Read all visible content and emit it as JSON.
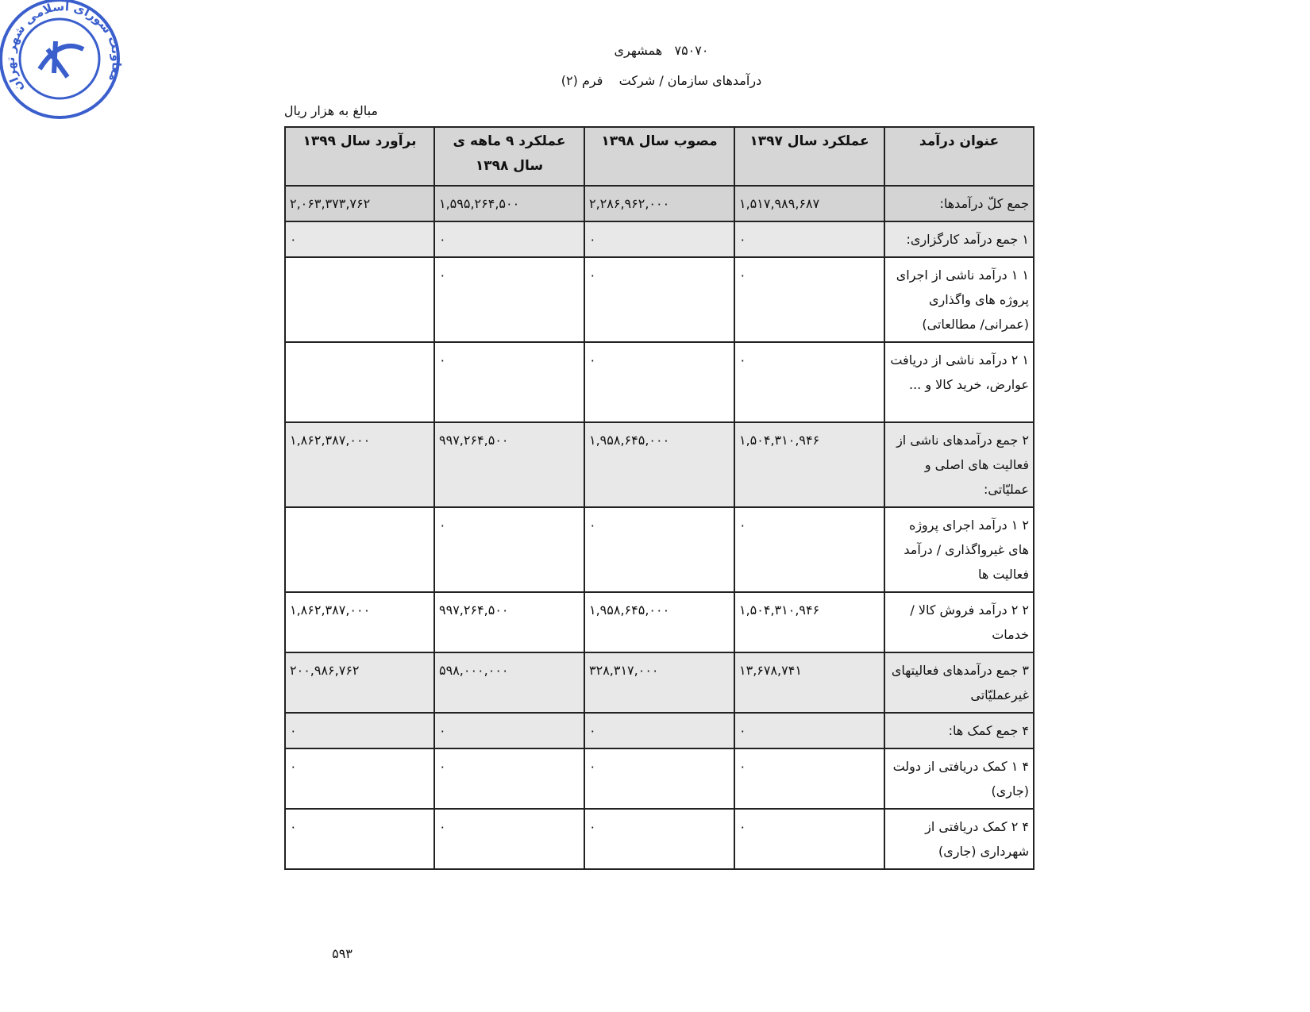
{
  "header": {
    "title": "۷۵۰۷۰   همشهری",
    "subtitle": "درآمدهای سازمان / شرکت    فرم (۲)",
    "unit_note": "مبالغ به هزار ریال"
  },
  "stamp": {
    "text": "معاونت شورای اسلامی شهر تهران"
  },
  "table": {
    "columns": [
      "عنوان درآمد",
      "عملکرد سال ۱۳۹۷",
      "مصوب سال ۱۳۹۸",
      "عملکرد ۹ ماهه ی سال ۱۳۹۸",
      "برآورد سال ۱۳۹۹"
    ],
    "rows": [
      [
        "جمع کلّ  درآمدها:",
        "۱,۵۱۷,۹۸۹,۶۸۷",
        "۲,۲۸۶,۹۶۲,۰۰۰",
        "۱,۵۹۵,۲۶۴,۵۰۰",
        "۲,۰۶۳,۳۷۳,۷۶۲"
      ],
      [
        "۱    جمع درآمد کارگزاری:",
        "۰",
        "۰",
        "۰",
        "۰"
      ],
      [
        "۱  ۱    درآمد ناشی از اجرای پروژه های واگذاری (عمرانی/ مطالعاتی)",
        "۰",
        "۰",
        "۰",
        null
      ],
      [
        "۱  ۲    درآمد ناشی از دریافت عوارض، خرید کالا و ...",
        "۰",
        "۰",
        "۰",
        null
      ],
      [
        "۲    جمع درآمدهای ناشی از فعالیت های اصلی و عملیّاتی:",
        "۱,۵۰۴,۳۱۰,۹۴۶",
        "۱,۹۵۸,۶۴۵,۰۰۰",
        "۹۹۷,۲۶۴,۵۰۰",
        "۱,۸۶۲,۳۸۷,۰۰۰"
      ],
      [
        "۲  ۱   درآمد اجرای پروژه های غیرواگذاری / درآمد فعالیت ها",
        "۰",
        "۰",
        "۰",
        null
      ],
      [
        "۲  ۲   درآمد فروش کالا / خدمات",
        "۱,۵۰۴,۳۱۰,۹۴۶",
        "۱,۹۵۸,۶۴۵,۰۰۰",
        "۹۹۷,۲۶۴,۵۰۰",
        "۱,۸۶۲,۳۸۷,۰۰۰"
      ],
      [
        "۳    جمع درآمدهای فعالیتهای غیرعملیّاتی",
        "۱۳,۶۷۸,۷۴۱",
        "۳۲۸,۳۱۷,۰۰۰",
        "۵۹۸,۰۰۰,۰۰۰",
        "۲۰۰,۹۸۶,۷۶۲"
      ],
      [
        "۴    جمع کمک ها:",
        "۰",
        "۰",
        "۰",
        "۰"
      ],
      [
        "۴   ۱   کمک دریافتی از دولت (جاری)",
        "۰",
        "۰",
        "۰",
        "۰"
      ],
      [
        "۴   ۲   کمک دریافتی از شهرداری (جاری)",
        "۰",
        "۰",
        "۰",
        "۰"
      ]
    ]
  },
  "footer": {
    "page_number": "۵۹۳"
  }
}
